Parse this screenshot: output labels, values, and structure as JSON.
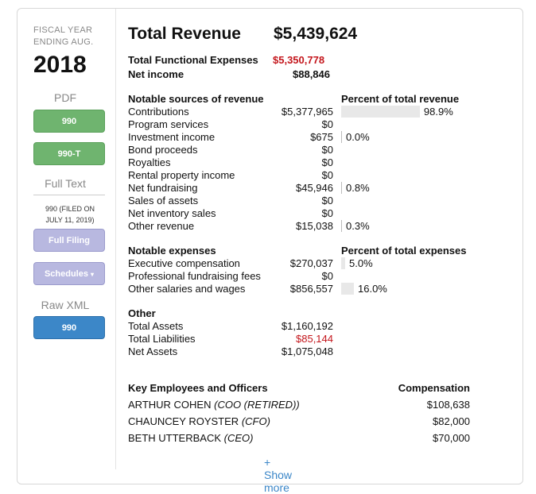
{
  "sidebar": {
    "fiscal_line1": "FISCAL YEAR",
    "fiscal_line2": "ENDING AUG.",
    "year": "2018",
    "pdf_label": "PDF",
    "btn_990": "990",
    "btn_990t": "990-T",
    "fulltext_label": "Full Text",
    "filed_line1": "990 (FILED ON",
    "filed_line2": "JULY 11, 2019)",
    "btn_full_filing": "Full Filing",
    "btn_schedules": "Schedules",
    "rawxml_label": "Raw XML",
    "btn_xml_990": "990"
  },
  "header": {
    "title": "Total Revenue",
    "total_revenue": "$5,439,624",
    "functional_label": "Total Functional Expenses",
    "functional_value": "$5,350,778",
    "net_label": "Net income",
    "net_value": "$88,846"
  },
  "revenue": {
    "heading": "Notable sources of revenue",
    "pct_heading": "Percent of total revenue",
    "rows": [
      {
        "label": "Contributions",
        "value": "$5,377,965",
        "pct": "98.9%",
        "pct_num": 98.9
      },
      {
        "label": "Program services",
        "value": "$0",
        "pct": "",
        "pct_num": 0
      },
      {
        "label": "Investment income",
        "value": "$675",
        "pct": "0.0%",
        "pct_num": 0.0
      },
      {
        "label": "Bond proceeds",
        "value": "$0",
        "pct": "",
        "pct_num": 0
      },
      {
        "label": "Royalties",
        "value": "$0",
        "pct": "",
        "pct_num": 0
      },
      {
        "label": "Rental property income",
        "value": "$0",
        "pct": "",
        "pct_num": 0
      },
      {
        "label": "Net fundraising",
        "value": "$45,946",
        "pct": "0.8%",
        "pct_num": 0.8
      },
      {
        "label": "Sales of assets",
        "value": "$0",
        "pct": "",
        "pct_num": 0
      },
      {
        "label": "Net inventory sales",
        "value": "$0",
        "pct": "",
        "pct_num": 0
      },
      {
        "label": "Other revenue",
        "value": "$15,038",
        "pct": "0.3%",
        "pct_num": 0.3
      }
    ]
  },
  "expenses": {
    "heading": "Notable expenses",
    "pct_heading": "Percent of total expenses",
    "rows": [
      {
        "label": "Executive compensation",
        "value": "$270,037",
        "pct": "5.0%",
        "pct_num": 5.0
      },
      {
        "label": "Professional fundraising fees",
        "value": "$0",
        "pct": "",
        "pct_num": 0
      },
      {
        "label": "Other salaries and wages",
        "value": "$856,557",
        "pct": "16.0%",
        "pct_num": 16.0
      }
    ]
  },
  "other": {
    "heading": "Other",
    "rows": [
      {
        "label": "Total Assets",
        "value": "$1,160,192"
      },
      {
        "label": "Total Liabilities",
        "value": "$85,144"
      },
      {
        "label": "Net Assets",
        "value": "$1,075,048"
      }
    ]
  },
  "employees": {
    "heading": "Key Employees and Officers",
    "comp_heading": "Compensation",
    "rows": [
      {
        "name": "ARTHUR COHEN",
        "title": "(COO (RETIRED))",
        "comp": "$108,638"
      },
      {
        "name": "CHAUNCEY ROYSTER",
        "title": "(CFO)",
        "comp": "$82,000"
      },
      {
        "name": "BETH UTTERBACK",
        "title": "(CEO)",
        "comp": "$70,000"
      }
    ],
    "show_more": "+ Show more"
  },
  "colors": {
    "accent_red": "#c4161c",
    "link_blue": "#3c87c8",
    "btn_green": "#6fb46f",
    "btn_purple": "#b8b8e0",
    "btn_blue": "#3c87c8"
  }
}
